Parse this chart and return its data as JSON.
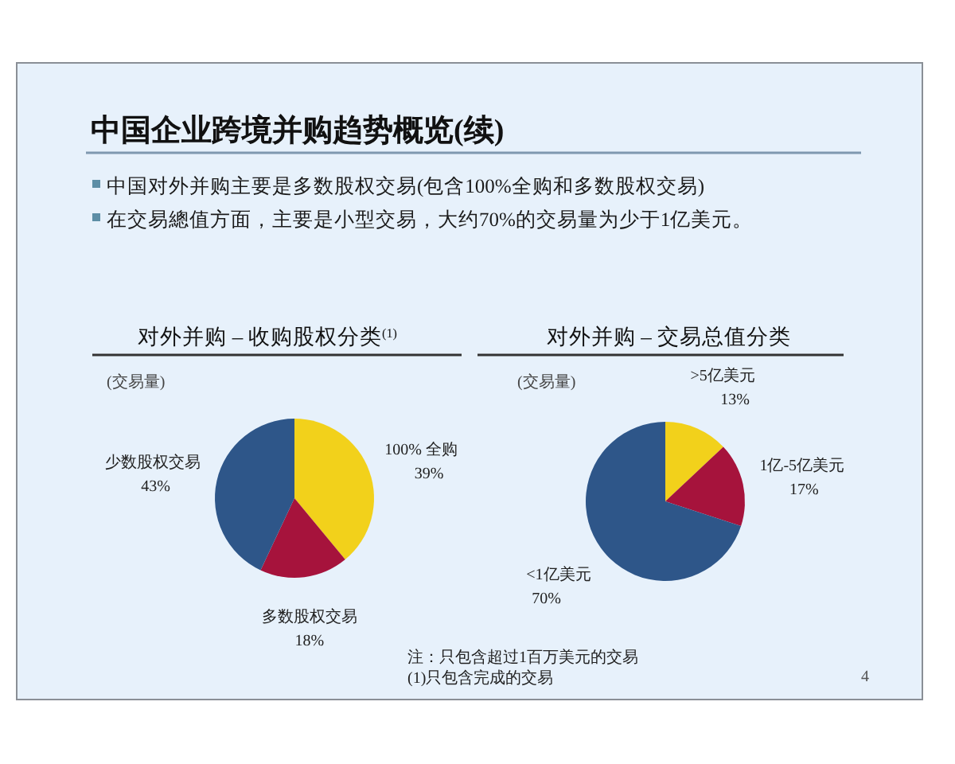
{
  "chart_data": [
    {
      "type": "other",
      "title": "中国企业跨境并购趋势概览(续)",
      "annotations": [
        "中国对外并购主要是多数股权交易(包含100%全购和多数股权交易)",
        "在交易總值方面，主要是小型交易，大约70%的交易量为少于1亿美元。"
      ]
    },
    {
      "type": "pie",
      "title": "对外并购 – 收购股权分类$^{(1)}$",
      "subtitle": "(交易量)",
      "categories": [
        "100% 全购",
        "多数股权交易",
        "少数股权交易"
      ],
      "values": [
        39,
        18,
        43
      ],
      "value_labels": [
        "39%",
        "18%",
        "43%"
      ],
      "colors": [
        "#f2d11b",
        "#a6133c",
        "#2e5689"
      ]
    },
    {
      "type": "pie",
      "title": "对外并购 – 交易总值分类",
      "subtitle": "(交易量)",
      "categories": [
        ">5亿美元",
        "1亿-5亿美元",
        "<1亿美元"
      ],
      "values": [
        13,
        17,
        70
      ],
      "value_labels": [
        "13%",
        "17%",
        "70%"
      ],
      "colors": [
        "#f2d11b",
        "#a6133c",
        "#2e5689"
      ]
    },
    {
      "type": "other",
      "annotations": [
        "注：只包含超过1百万美元的交易",
        "(1)只包含完成的交易",
        "4"
      ]
    }
  ]
}
